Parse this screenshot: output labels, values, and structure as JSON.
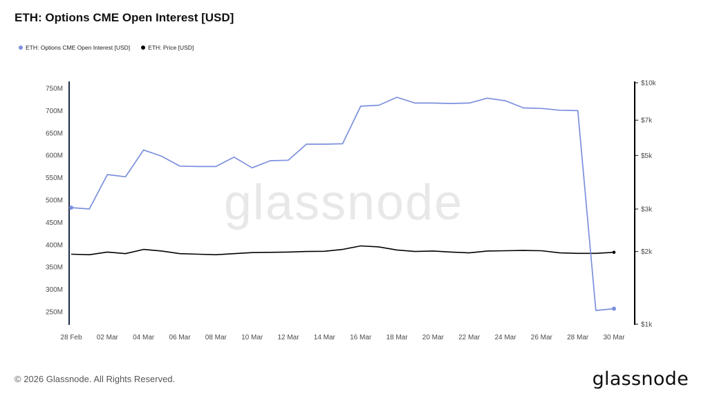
{
  "header": {
    "title": "ETH: Options CME Open Interest [USD]"
  },
  "legend": [
    {
      "label": "ETH: Options CME Open Interest [USD]",
      "color": "#7b8fdd"
    },
    {
      "label": "ETH: Price [USD]",
      "color": "#000000"
    }
  ],
  "watermark": "glassnode",
  "footer": {
    "copyright": "© 2026 Glassnode. All Rights Reserved.",
    "brand": "glassnode"
  },
  "chart_data": {
    "type": "line",
    "title": "ETH: Options CME Open Interest [USD]",
    "x": [
      "28 Feb",
      "01 Mar",
      "02 Mar",
      "03 Mar",
      "04 Mar",
      "05 Mar",
      "06 Mar",
      "07 Mar",
      "08 Mar",
      "09 Mar",
      "10 Mar",
      "11 Mar",
      "12 Mar",
      "13 Mar",
      "14 Mar",
      "15 Mar",
      "16 Mar",
      "17 Mar",
      "18 Mar",
      "19 Mar",
      "20 Mar",
      "21 Mar",
      "22 Mar",
      "23 Mar",
      "24 Mar",
      "25 Mar",
      "26 Mar",
      "27 Mar",
      "28 Mar",
      "29 Mar",
      "30 Mar"
    ],
    "x_tick_labels": [
      "28 Feb",
      "02 Mar",
      "04 Mar",
      "06 Mar",
      "08 Mar",
      "10 Mar",
      "12 Mar",
      "14 Mar",
      "16 Mar",
      "18 Mar",
      "20 Mar",
      "22 Mar",
      "24 Mar",
      "26 Mar",
      "28 Mar",
      "30 Mar"
    ],
    "series": [
      {
        "name": "ETH: Options CME Open Interest [USD]",
        "axis": "left",
        "color": "#7b8fdd",
        "unit": "M USD",
        "values": [
          483,
          480,
          557,
          552,
          612,
          598,
          576,
          575,
          575,
          596,
          572,
          588,
          589,
          625,
          625,
          626,
          710,
          712,
          730,
          717,
          717,
          716,
          717,
          728,
          722,
          706,
          705,
          701,
          700,
          253,
          257
        ]
      },
      {
        "name": "ETH: Price [USD]",
        "axis": "right",
        "color": "#000000",
        "unit": "USD",
        "values": [
          1950,
          1940,
          1990,
          1960,
          2040,
          2010,
          1960,
          1950,
          1940,
          1960,
          1980,
          1985,
          1990,
          2000,
          2005,
          2040,
          2110,
          2090,
          2030,
          2000,
          2010,
          1990,
          1975,
          2010,
          2015,
          2020,
          2015,
          1975,
          1965,
          1965,
          1985
        ]
      }
    ],
    "left_axis": {
      "scale": "linear",
      "unit": "M",
      "tick_labels": [
        "750M",
        "700M",
        "650M",
        "600M",
        "550M",
        "500M",
        "450M",
        "400M",
        "350M",
        "300M",
        "250M"
      ],
      "tick_values": [
        750,
        700,
        650,
        600,
        550,
        500,
        450,
        400,
        350,
        300,
        250
      ],
      "min": 250,
      "max": 750
    },
    "right_axis": {
      "scale": "log",
      "unit": "$",
      "tick_labels": [
        "$10k",
        "$7k",
        "$5k",
        "$3k",
        "$2k",
        "$1k"
      ],
      "tick_values": [
        10000,
        7000,
        5000,
        3000,
        2000,
        1000
      ],
      "min": 1000,
      "max": 10000
    },
    "grid": false,
    "legend_position": "top-left"
  }
}
